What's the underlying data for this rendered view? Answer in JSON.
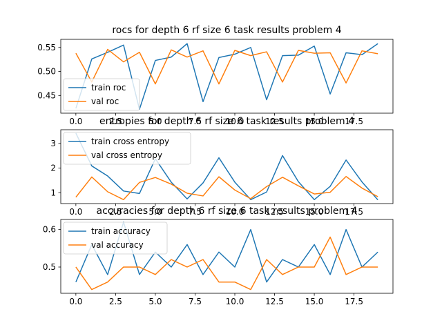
{
  "colors": {
    "train": "#1f77b4",
    "val": "#ff7f0e"
  },
  "chart_data": [
    {
      "type": "line",
      "title": "rocs for depth 6 rf size 6 task results problem 4",
      "xlabel": "",
      "ylabel": "",
      "xlim": [
        -0.95,
        19.95
      ],
      "ylim": [
        0.413,
        0.567
      ],
      "xticks": [
        0.0,
        2.5,
        5.0,
        7.5,
        10.0,
        12.5,
        15.0,
        17.5
      ],
      "xtick_labels": [
        "0.0",
        "2.5",
        "5.0",
        "7.5",
        "10.0",
        "12.5",
        "15.0",
        "17.5"
      ],
      "yticks": [
        0.45,
        0.5,
        0.55
      ],
      "ytick_labels": [
        "0.45",
        "0.50",
        "0.55"
      ],
      "legend": "lower-left",
      "grid": false,
      "x": [
        0,
        1,
        2,
        3,
        4,
        5,
        6,
        7,
        8,
        9,
        10,
        11,
        12,
        13,
        14,
        15,
        16,
        17,
        18,
        19
      ],
      "series": [
        {
          "name": "train roc",
          "color": "#1f77b4",
          "values": [
            0.423,
            0.526,
            0.54,
            0.555,
            0.421,
            0.523,
            0.53,
            0.558,
            0.437,
            0.529,
            0.536,
            0.55,
            0.441,
            0.533,
            0.534,
            0.553,
            0.453,
            0.539,
            0.535,
            0.558
          ]
        },
        {
          "name": "val roc",
          "color": "#ff7f0e",
          "values": [
            0.538,
            0.478,
            0.546,
            0.52,
            0.54,
            0.474,
            0.545,
            0.53,
            0.543,
            0.474,
            0.544,
            0.533,
            0.541,
            0.478,
            0.544,
            0.538,
            0.539,
            0.476,
            0.543,
            0.537
          ]
        }
      ]
    },
    {
      "type": "line",
      "title": "entropies for depth 6 rf size 6 task results problem 4",
      "xlabel": "",
      "ylabel": "",
      "xlim": [
        -0.95,
        19.95
      ],
      "ylim": [
        0.56,
        3.56
      ],
      "xticks": [
        0.0,
        2.5,
        5.0,
        7.5,
        10.0,
        12.5,
        15.0,
        17.5
      ],
      "xtick_labels": [
        "0.0",
        "2.5",
        "5.0",
        "7.5",
        "10.0",
        "12.5",
        "15.0",
        "17.5"
      ],
      "yticks": [
        1,
        2,
        3
      ],
      "ytick_labels": [
        "1",
        "2",
        "3"
      ],
      "legend": "upper-left",
      "grid": false,
      "x": [
        0,
        1,
        2,
        3,
        4,
        5,
        6,
        7,
        8,
        9,
        10,
        11,
        12,
        13,
        14,
        15,
        16,
        17,
        18,
        19
      ],
      "series": [
        {
          "name": "train cross entropy",
          "color": "#1f77b4",
          "values": [
            3.42,
            2.09,
            1.68,
            1.07,
            0.97,
            2.38,
            1.43,
            0.75,
            1.4,
            2.42,
            1.43,
            0.72,
            1.03,
            2.51,
            1.45,
            0.72,
            1.26,
            2.33,
            1.44,
            0.71
          ]
        },
        {
          "name": "val cross entropy",
          "color": "#ff7f0e",
          "values": [
            0.82,
            1.64,
            1.04,
            0.72,
            1.42,
            1.62,
            1.35,
            0.98,
            0.87,
            1.65,
            1.11,
            0.76,
            1.25,
            1.63,
            1.28,
            0.95,
            1.02,
            1.66,
            1.19,
            0.84
          ]
        }
      ]
    },
    {
      "type": "line",
      "title": "accuracies for depth 6 rf size 6 task results problem 4",
      "xlabel": "",
      "ylabel": "",
      "xlim": [
        -0.95,
        19.95
      ],
      "ylim": [
        0.43,
        0.627
      ],
      "xticks": [
        0.0,
        2.5,
        5.0,
        7.5,
        10.0,
        12.5,
        15.0,
        17.5
      ],
      "xtick_labels": [
        "0.0",
        "2.5",
        "5.0",
        "7.5",
        "10.0",
        "12.5",
        "15.0",
        "17.5"
      ],
      "yticks": [
        0.5,
        0.6
      ],
      "ytick_labels": [
        "0.5",
        "0.6"
      ],
      "legend": "upper-left",
      "grid": false,
      "x": [
        0,
        1,
        2,
        3,
        4,
        5,
        6,
        7,
        8,
        9,
        10,
        11,
        12,
        13,
        14,
        15,
        16,
        17,
        18,
        19
      ],
      "series": [
        {
          "name": "train accuracy",
          "color": "#1f77b4",
          "values": [
            0.46,
            0.56,
            0.48,
            0.62,
            0.48,
            0.54,
            0.5,
            0.56,
            0.48,
            0.54,
            0.5,
            0.6,
            0.46,
            0.52,
            0.5,
            0.56,
            0.48,
            0.6,
            0.5,
            0.54
          ]
        },
        {
          "name": "val accuracy",
          "color": "#ff7f0e",
          "values": [
            0.5,
            0.44,
            0.46,
            0.5,
            0.5,
            0.48,
            0.52,
            0.5,
            0.52,
            0.46,
            0.46,
            0.44,
            0.52,
            0.48,
            0.5,
            0.5,
            0.58,
            0.48,
            0.5,
            0.5
          ]
        }
      ]
    }
  ]
}
